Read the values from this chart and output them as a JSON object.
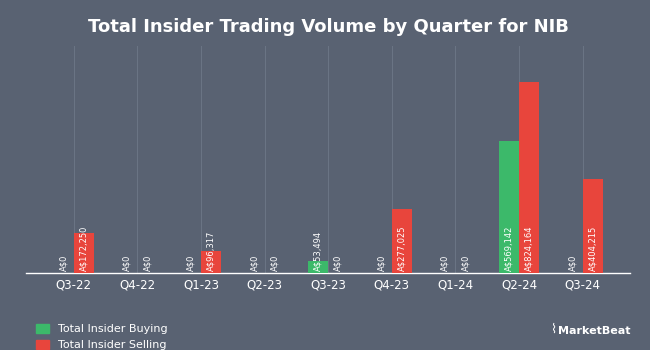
{
  "title": "Total Insider Trading Volume by Quarter for NIB",
  "quarters": [
    "Q3-22",
    "Q4-22",
    "Q1-23",
    "Q2-23",
    "Q3-23",
    "Q4-23",
    "Q1-24",
    "Q2-24",
    "Q3-24"
  ],
  "buying": [
    0,
    0,
    0,
    0,
    53494,
    0,
    0,
    569142,
    0
  ],
  "selling": [
    172250,
    0,
    96317,
    0,
    0,
    277025,
    0,
    824164,
    404215
  ],
  "buying_color": "#3cb96a",
  "selling_color": "#e8453c",
  "bg_color": "#596272",
  "text_color": "#ffffff",
  "grid_color": "#6b7585",
  "bar_width": 0.32,
  "legend_buying": "Total Insider Buying",
  "legend_selling": "Total Insider Selling",
  "ylim": [
    0,
    980000
  ],
  "label_fontsize": 6.0,
  "title_fontsize": 13,
  "xlabel_fontsize": 8.5,
  "legend_fontsize": 8.0
}
